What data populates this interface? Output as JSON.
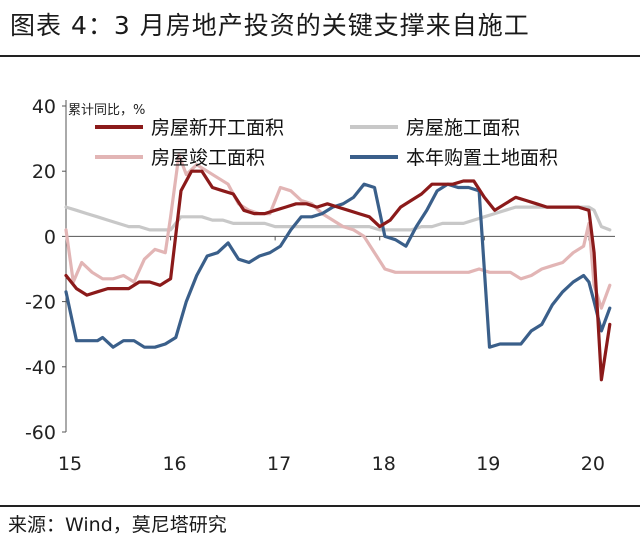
{
  "figure_title": "图表 4：3 月房地产投资的关键支撑来自施工",
  "source": "来源：Wind，莫尼塔研究",
  "chart_data": {
    "type": "line",
    "ylabel": "累计同比，%",
    "ylim": [
      -60,
      40
    ],
    "yticks": [
      40,
      20,
      0,
      -20,
      -40,
      -60
    ],
    "xlim": [
      2015.0,
      2020.25
    ],
    "xticks": [
      {
        "label": "15",
        "value": 2015.0
      },
      {
        "label": "16",
        "value": 2016.0
      },
      {
        "label": "17",
        "value": 2017.0
      },
      {
        "label": "18",
        "value": 2018.0
      },
      {
        "label": "19",
        "value": 2019.0
      },
      {
        "label": "20",
        "value": 2020.0
      }
    ],
    "legend_position": "top",
    "grid": false,
    "series": [
      {
        "name": "房屋新开工面积",
        "color": "#8b1a1a",
        "points": [
          [
            2015.0,
            -12
          ],
          [
            2015.1,
            -16
          ],
          [
            2015.2,
            -18
          ],
          [
            2015.3,
            -17
          ],
          [
            2015.4,
            -16
          ],
          [
            2015.5,
            -16
          ],
          [
            2015.6,
            -16
          ],
          [
            2015.7,
            -14
          ],
          [
            2015.8,
            -14
          ],
          [
            2015.9,
            -15
          ],
          [
            2015.95,
            -14
          ],
          [
            2016.0,
            -13
          ],
          [
            2016.1,
            14
          ],
          [
            2016.2,
            20
          ],
          [
            2016.3,
            20
          ],
          [
            2016.4,
            15
          ],
          [
            2016.5,
            14
          ],
          [
            2016.6,
            13
          ],
          [
            2016.7,
            8
          ],
          [
            2016.8,
            7
          ],
          [
            2016.9,
            7
          ],
          [
            2017.0,
            8
          ],
          [
            2017.1,
            9
          ],
          [
            2017.2,
            10
          ],
          [
            2017.3,
            10
          ],
          [
            2017.4,
            9
          ],
          [
            2017.5,
            10
          ],
          [
            2017.6,
            9
          ],
          [
            2017.7,
            8
          ],
          [
            2017.8,
            7
          ],
          [
            2017.9,
            6
          ],
          [
            2018.0,
            3
          ],
          [
            2018.1,
            5
          ],
          [
            2018.2,
            9
          ],
          [
            2018.3,
            11
          ],
          [
            2018.4,
            13
          ],
          [
            2018.5,
            16
          ],
          [
            2018.6,
            16
          ],
          [
            2018.7,
            16
          ],
          [
            2018.8,
            17
          ],
          [
            2018.9,
            17
          ],
          [
            2019.0,
            12
          ],
          [
            2019.1,
            8
          ],
          [
            2019.2,
            10
          ],
          [
            2019.3,
            12
          ],
          [
            2019.4,
            11
          ],
          [
            2019.5,
            10
          ],
          [
            2019.6,
            9
          ],
          [
            2019.7,
            9
          ],
          [
            2019.8,
            9
          ],
          [
            2019.9,
            9
          ],
          [
            2020.0,
            8
          ],
          [
            2020.05,
            -5
          ],
          [
            2020.12,
            -44
          ],
          [
            2020.2,
            -27
          ]
        ]
      },
      {
        "name": "房屋施工面积",
        "color": "#c8c8c8",
        "points": [
          [
            2015.0,
            9
          ],
          [
            2015.1,
            8
          ],
          [
            2015.2,
            7
          ],
          [
            2015.3,
            6
          ],
          [
            2015.4,
            5
          ],
          [
            2015.5,
            4
          ],
          [
            2015.6,
            3
          ],
          [
            2015.7,
            3
          ],
          [
            2015.8,
            2
          ],
          [
            2015.9,
            2
          ],
          [
            2016.0,
            2
          ],
          [
            2016.1,
            6
          ],
          [
            2016.2,
            6
          ],
          [
            2016.3,
            6
          ],
          [
            2016.4,
            5
          ],
          [
            2016.5,
            5
          ],
          [
            2016.6,
            4
          ],
          [
            2016.7,
            4
          ],
          [
            2016.8,
            4
          ],
          [
            2016.9,
            4
          ],
          [
            2017.0,
            3
          ],
          [
            2017.1,
            3
          ],
          [
            2017.2,
            3
          ],
          [
            2017.3,
            3
          ],
          [
            2017.4,
            3
          ],
          [
            2017.5,
            3
          ],
          [
            2017.6,
            3
          ],
          [
            2017.7,
            3
          ],
          [
            2017.8,
            3
          ],
          [
            2017.9,
            3
          ],
          [
            2018.0,
            2
          ],
          [
            2018.1,
            2
          ],
          [
            2018.2,
            2
          ],
          [
            2018.3,
            2
          ],
          [
            2018.4,
            3
          ],
          [
            2018.5,
            3
          ],
          [
            2018.6,
            4
          ],
          [
            2018.7,
            4
          ],
          [
            2018.8,
            4
          ],
          [
            2018.9,
            5
          ],
          [
            2019.0,
            6
          ],
          [
            2019.1,
            7
          ],
          [
            2019.2,
            8
          ],
          [
            2019.3,
            9
          ],
          [
            2019.4,
            9
          ],
          [
            2019.5,
            9
          ],
          [
            2019.6,
            9
          ],
          [
            2019.7,
            9
          ],
          [
            2019.8,
            9
          ],
          [
            2019.9,
            9
          ],
          [
            2020.0,
            9
          ],
          [
            2020.05,
            8
          ],
          [
            2020.12,
            3
          ],
          [
            2020.2,
            2
          ]
        ]
      },
      {
        "name": "房屋竣工面积",
        "color": "#e2b5b5",
        "points": [
          [
            2015.0,
            2
          ],
          [
            2015.07,
            -14
          ],
          [
            2015.15,
            -8
          ],
          [
            2015.25,
            -11
          ],
          [
            2015.35,
            -13
          ],
          [
            2015.45,
            -13
          ],
          [
            2015.55,
            -12
          ],
          [
            2015.65,
            -14
          ],
          [
            2015.75,
            -7
          ],
          [
            2015.85,
            -4
          ],
          [
            2015.95,
            -5
          ],
          [
            2016.0,
            6
          ],
          [
            2016.08,
            25
          ],
          [
            2016.15,
            19
          ],
          [
            2016.25,
            22
          ],
          [
            2016.35,
            20
          ],
          [
            2016.45,
            18
          ],
          [
            2016.55,
            16
          ],
          [
            2016.65,
            10
          ],
          [
            2016.75,
            8
          ],
          [
            2016.85,
            7
          ],
          [
            2016.95,
            7
          ],
          [
            2017.05,
            15
          ],
          [
            2017.15,
            14
          ],
          [
            2017.25,
            11
          ],
          [
            2017.35,
            10
          ],
          [
            2017.45,
            7
          ],
          [
            2017.55,
            5
          ],
          [
            2017.65,
            3
          ],
          [
            2017.75,
            2
          ],
          [
            2017.85,
            0
          ],
          [
            2017.95,
            -5
          ],
          [
            2018.05,
            -10
          ],
          [
            2018.15,
            -11
          ],
          [
            2018.25,
            -11
          ],
          [
            2018.35,
            -11
          ],
          [
            2018.45,
            -11
          ],
          [
            2018.55,
            -11
          ],
          [
            2018.65,
            -11
          ],
          [
            2018.75,
            -11
          ],
          [
            2018.85,
            -11
          ],
          [
            2018.95,
            -10
          ],
          [
            2019.05,
            -11
          ],
          [
            2019.15,
            -11
          ],
          [
            2019.25,
            -11
          ],
          [
            2019.35,
            -13
          ],
          [
            2019.45,
            -12
          ],
          [
            2019.55,
            -10
          ],
          [
            2019.65,
            -9
          ],
          [
            2019.75,
            -8
          ],
          [
            2019.85,
            -5
          ],
          [
            2019.95,
            -3
          ],
          [
            2020.0,
            4
          ],
          [
            2020.05,
            -15
          ],
          [
            2020.12,
            -22
          ],
          [
            2020.2,
            -15
          ]
        ]
      },
      {
        "name": "本年购置土地面积",
        "color": "#3a5f8a",
        "points": [
          [
            2015.0,
            -17
          ],
          [
            2015.1,
            -32
          ],
          [
            2015.2,
            -32
          ],
          [
            2015.3,
            -32
          ],
          [
            2015.35,
            -31
          ],
          [
            2015.45,
            -34
          ],
          [
            2015.55,
            -32
          ],
          [
            2015.65,
            -32
          ],
          [
            2015.75,
            -34
          ],
          [
            2015.85,
            -34
          ],
          [
            2015.95,
            -33
          ],
          [
            2016.05,
            -31
          ],
          [
            2016.15,
            -20
          ],
          [
            2016.25,
            -12
          ],
          [
            2016.35,
            -6
          ],
          [
            2016.45,
            -5
          ],
          [
            2016.55,
            -2
          ],
          [
            2016.65,
            -7
          ],
          [
            2016.75,
            -8
          ],
          [
            2016.85,
            -6
          ],
          [
            2016.95,
            -5
          ],
          [
            2017.05,
            -3
          ],
          [
            2017.15,
            2
          ],
          [
            2017.25,
            6
          ],
          [
            2017.35,
            6
          ],
          [
            2017.45,
            7
          ],
          [
            2017.55,
            9
          ],
          [
            2017.65,
            10
          ],
          [
            2017.75,
            12
          ],
          [
            2017.85,
            16
          ],
          [
            2017.95,
            15
          ],
          [
            2018.05,
            0
          ],
          [
            2018.15,
            -1
          ],
          [
            2018.25,
            -3
          ],
          [
            2018.35,
            3
          ],
          [
            2018.45,
            8
          ],
          [
            2018.55,
            14
          ],
          [
            2018.65,
            16
          ],
          [
            2018.75,
            15
          ],
          [
            2018.85,
            15
          ],
          [
            2018.95,
            14
          ],
          [
            2019.05,
            -34
          ],
          [
            2019.15,
            -33
          ],
          [
            2019.25,
            -33
          ],
          [
            2019.35,
            -33
          ],
          [
            2019.45,
            -29
          ],
          [
            2019.55,
            -27
          ],
          [
            2019.65,
            -21
          ],
          [
            2019.75,
            -17
          ],
          [
            2019.85,
            -14
          ],
          [
            2019.95,
            -12
          ],
          [
            2020.0,
            -14
          ],
          [
            2020.05,
            -20
          ],
          [
            2020.12,
            -29
          ],
          [
            2020.2,
            -22
          ]
        ]
      }
    ]
  }
}
